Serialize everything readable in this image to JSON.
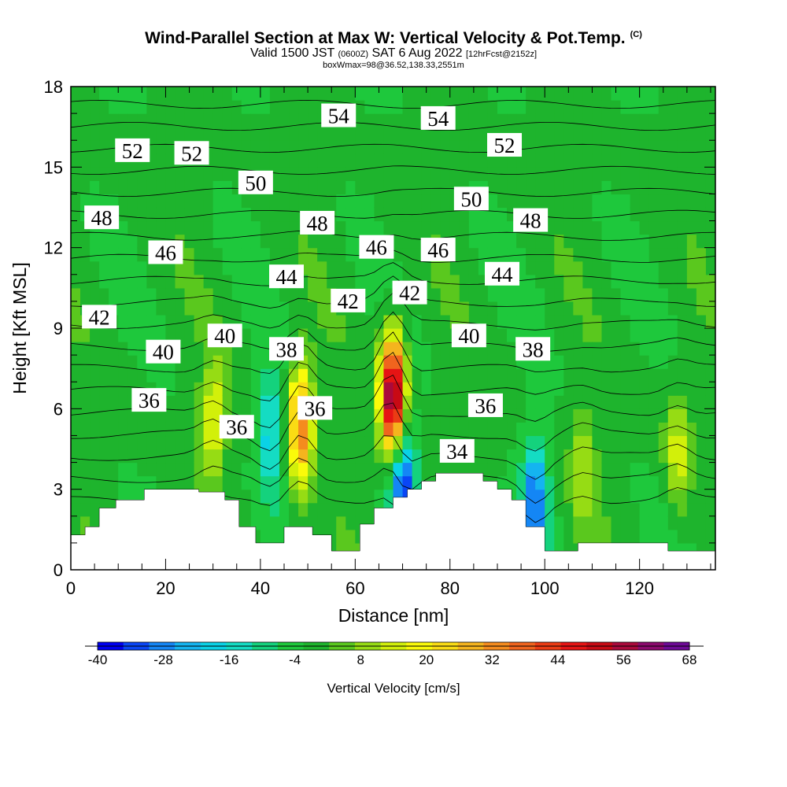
{
  "title": {
    "main": "Wind-Parallel Section at Max W: Vertical Velocity & Pot.Temp.",
    "copyright": "(C)",
    "valid_prefix": "Valid 1500 JST",
    "valid_utc": "(0600Z)",
    "valid_date": "SAT 6 Aug 2022",
    "forecast": "[12hrFcst@2152z]",
    "box_info": "boxWmax=98@36.52,138.33,2551m"
  },
  "chart_data": {
    "type": "heatmap",
    "xlabel": "Distance [nm]",
    "ylabel": "Height [Kft MSL]",
    "xlim": [
      0,
      136
    ],
    "ylim": [
      0,
      18
    ],
    "x_ticks": [
      0,
      20,
      40,
      60,
      80,
      100,
      120
    ],
    "y_ticks": [
      0,
      3,
      6,
      9,
      12,
      15,
      18
    ],
    "colorbar": {
      "label": "Vertical Velocity [cm/s]",
      "min": -40,
      "max": 68,
      "ticks": [
        -40,
        -28,
        -16,
        -4,
        8,
        20,
        32,
        44,
        56,
        68
      ],
      "colors": [
        "#0000f0",
        "#0a46f5",
        "#1486f5",
        "#14b4f0",
        "#0ad2e6",
        "#14dcc3",
        "#14d27d",
        "#1ec83c",
        "#1eb42d",
        "#5ac81e",
        "#96dc14",
        "#d2f00a",
        "#fafa0a",
        "#fadc14",
        "#f5b41e",
        "#f58c1e",
        "#f0641e",
        "#eb3c14",
        "#e61414",
        "#c80a14",
        "#aa0a3c",
        "#8c0a6e",
        "#6e0a96"
      ]
    },
    "w_cores_cm_s": [
      {
        "x": 30,
        "z": 5.5,
        "w": 18
      },
      {
        "x": 48.5,
        "z": 5.5,
        "w": 38
      },
      {
        "x": 68,
        "z": 6.5,
        "w": 66
      },
      {
        "x": 128,
        "z": 4.5,
        "w": 16
      },
      {
        "x": 108,
        "z": 3.8,
        "w": 12
      },
      {
        "x": 42,
        "z": 5,
        "w": -18
      },
      {
        "x": 70,
        "z": 3.2,
        "w": -36
      },
      {
        "x": 98,
        "z": 2.6,
        "w": -30
      }
    ],
    "theta_contour_labels": [
      {
        "value": "54",
        "x": 56.5,
        "z": 16.9
      },
      {
        "value": "54",
        "x": 77.5,
        "z": 16.8
      },
      {
        "value": "52",
        "x": 13,
        "z": 15.6
      },
      {
        "value": "52",
        "x": 25.5,
        "z": 15.5
      },
      {
        "value": "52",
        "x": 91.5,
        "z": 15.8
      },
      {
        "value": "50",
        "x": 39,
        "z": 14.4
      },
      {
        "value": "50",
        "x": 84.5,
        "z": 13.8
      },
      {
        "value": "48",
        "x": 6.5,
        "z": 13.1
      },
      {
        "value": "48",
        "x": 52,
        "z": 12.9
      },
      {
        "value": "48",
        "x": 97,
        "z": 13
      },
      {
        "value": "46",
        "x": 20,
        "z": 11.8
      },
      {
        "value": "46",
        "x": 64.5,
        "z": 12
      },
      {
        "value": "46",
        "x": 77.5,
        "z": 11.9
      },
      {
        "value": "44",
        "x": 45.5,
        "z": 10.9
      },
      {
        "value": "44",
        "x": 91,
        "z": 11
      },
      {
        "value": "42",
        "x": 6,
        "z": 9.4
      },
      {
        "value": "42",
        "x": 58.5,
        "z": 10
      },
      {
        "value": "42",
        "x": 71.5,
        "z": 10.3
      },
      {
        "value": "40",
        "x": 19.5,
        "z": 8.1
      },
      {
        "value": "40",
        "x": 32.5,
        "z": 8.7
      },
      {
        "value": "40",
        "x": 84,
        "z": 8.7
      },
      {
        "value": "38",
        "x": 45.5,
        "z": 8.2
      },
      {
        "value": "38",
        "x": 97.5,
        "z": 8.2
      },
      {
        "value": "36",
        "x": 16.5,
        "z": 6.3
      },
      {
        "value": "36",
        "x": 35,
        "z": 5.3
      },
      {
        "value": "36",
        "x": 51.5,
        "z": 6
      },
      {
        "value": "36",
        "x": 87.5,
        "z": 6.1
      },
      {
        "value": "34",
        "x": 81.5,
        "z": 4.4
      }
    ],
    "terrain_kft": [
      [
        0,
        1.3
      ],
      [
        3,
        1.3
      ],
      [
        3,
        1.6
      ],
      [
        6,
        1.6
      ],
      [
        6,
        2.3
      ],
      [
        9.5,
        2.3
      ],
      [
        9.5,
        2.6
      ],
      [
        15.5,
        2.6
      ],
      [
        15.5,
        3
      ],
      [
        27,
        3
      ],
      [
        27,
        2.9
      ],
      [
        32.5,
        2.9
      ],
      [
        32.5,
        2.6
      ],
      [
        35.5,
        2.6
      ],
      [
        35.5,
        1.6
      ],
      [
        39,
        1.6
      ],
      [
        39,
        1
      ],
      [
        45,
        1
      ],
      [
        45,
        1.6
      ],
      [
        51,
        1.6
      ],
      [
        51,
        1.3
      ],
      [
        55,
        1.3
      ],
      [
        55,
        0.7
      ],
      [
        61,
        0.7
      ],
      [
        61,
        1.7
      ],
      [
        64,
        1.7
      ],
      [
        64,
        2.3
      ],
      [
        68,
        2.3
      ],
      [
        68,
        2.7
      ],
      [
        71,
        2.7
      ],
      [
        71,
        3
      ],
      [
        74,
        3
      ],
      [
        74,
        3.3
      ],
      [
        77,
        3.3
      ],
      [
        77,
        3.6
      ],
      [
        87,
        3.6
      ],
      [
        87,
        3.3
      ],
      [
        90,
        3.3
      ],
      [
        90,
        3
      ],
      [
        93,
        3
      ],
      [
        93,
        2.6
      ],
      [
        96,
        2.6
      ],
      [
        96,
        1.6
      ],
      [
        100,
        1.6
      ],
      [
        100,
        0.7
      ],
      [
        107,
        0.7
      ],
      [
        107,
        1
      ],
      [
        126,
        1
      ],
      [
        126,
        0.7
      ],
      [
        136,
        0.7
      ]
    ]
  }
}
